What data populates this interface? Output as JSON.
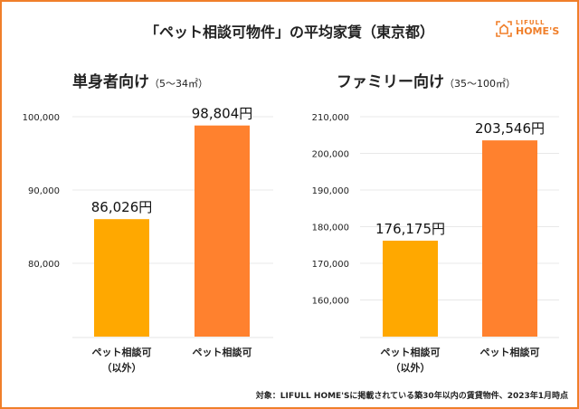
{
  "title": "「ペット相談可物件」の平均家賃（東京都）",
  "logo": {
    "line1": "LIFULL",
    "line2": "HOME'S",
    "color": "#F07F2A"
  },
  "footnote": "対象：LIFULL HOME'Sに掲載されている築30年以内の賃貸物件、2023年1月時点",
  "colors": {
    "not_pet": "#FFA800",
    "pet": "#FF812E",
    "border": "#F07F2A"
  },
  "chart_data": [
    {
      "type": "bar",
      "title": "単身者向け",
      "subtitle": "（5～34㎡）",
      "categories": [
        "ペット相談可\n（以外）",
        "ペット相談可"
      ],
      "values": [
        86026,
        98804
      ],
      "data_labels": [
        "86,026円",
        "98,804円"
      ],
      "ylim": [
        70000,
        100000
      ],
      "yticks": [
        80000,
        90000,
        100000
      ],
      "ytick_labels": [
        "80,000",
        "90,000",
        "100,000"
      ],
      "grid": true
    },
    {
      "type": "bar",
      "title": "ファミリー向け",
      "subtitle": "（35～100㎡）",
      "categories": [
        "ペット相談可\n（以外）",
        "ペット相談可"
      ],
      "values": [
        176175,
        203546
      ],
      "data_labels": [
        "176,175円",
        "203,546円"
      ],
      "ylim": [
        150000,
        210000
      ],
      "yticks": [
        160000,
        170000,
        180000,
        190000,
        200000,
        210000
      ],
      "ytick_labels": [
        "160,000",
        "170,000",
        "180,000",
        "190,000",
        "200,000",
        "210,000"
      ],
      "grid": true
    }
  ]
}
